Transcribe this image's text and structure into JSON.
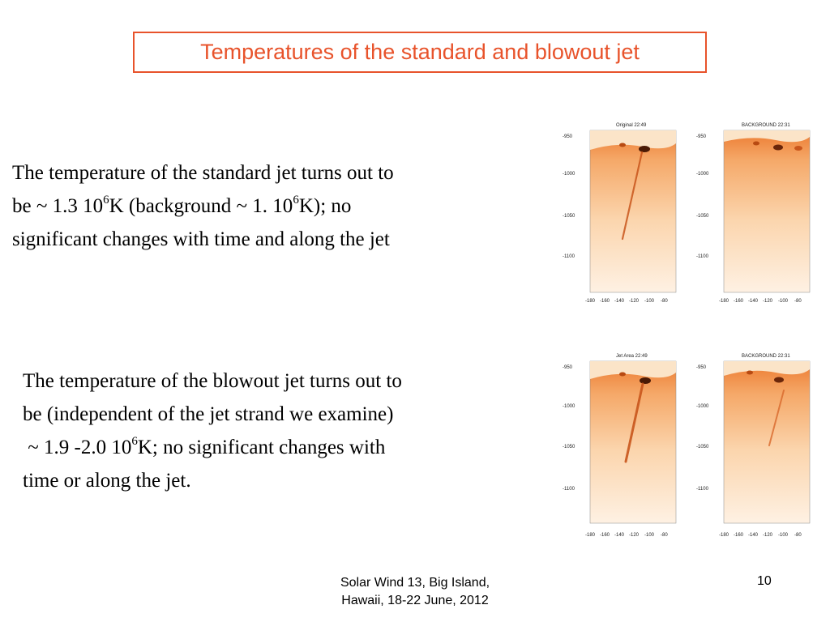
{
  "slide": {
    "title": "Temperatures of the standard and blowout jet",
    "para1": {
      "line1": "The temperature of the standard jet turns out to",
      "line2a": "be ~ 1.3 10",
      "line2sup1": "6",
      "line2b": "K (background ~ 1. 10",
      "line2sup2": "6",
      "line2c": "K); no",
      "line3": "significant changes with time and along the jet"
    },
    "para2": {
      "line1": "The temperature of the blowout jet turns out to",
      "line2": "be (independent of the jet strand we examine)",
      "line3a": " ~ 1.9 -2.0 10",
      "line3sup": "6",
      "line3b": "K; no significant changes with",
      "line4": "time or along the jet."
    },
    "footer": {
      "line1": "Solar Wind 13,  Big Island,",
      "line2": "Hawaii, 18-22 June, 2012"
    },
    "page_number": "10"
  },
  "images": {
    "panel1_title": "Original 22:49",
    "panel2_title": "BACKGROUND  22:31",
    "panel3_title": "Jet Area 22:49",
    "panel4_title": "BACKGROUND  22:31",
    "y_ticks": [
      "-950",
      "-1000",
      "-1050",
      "-1100"
    ],
    "x_ticks": [
      "-180",
      "-160",
      "-140",
      "-120",
      "-100",
      "-80"
    ],
    "colors": {
      "accent": "#e8532b",
      "image_dark": "#e2661a",
      "image_light": "#fef3e6"
    }
  }
}
